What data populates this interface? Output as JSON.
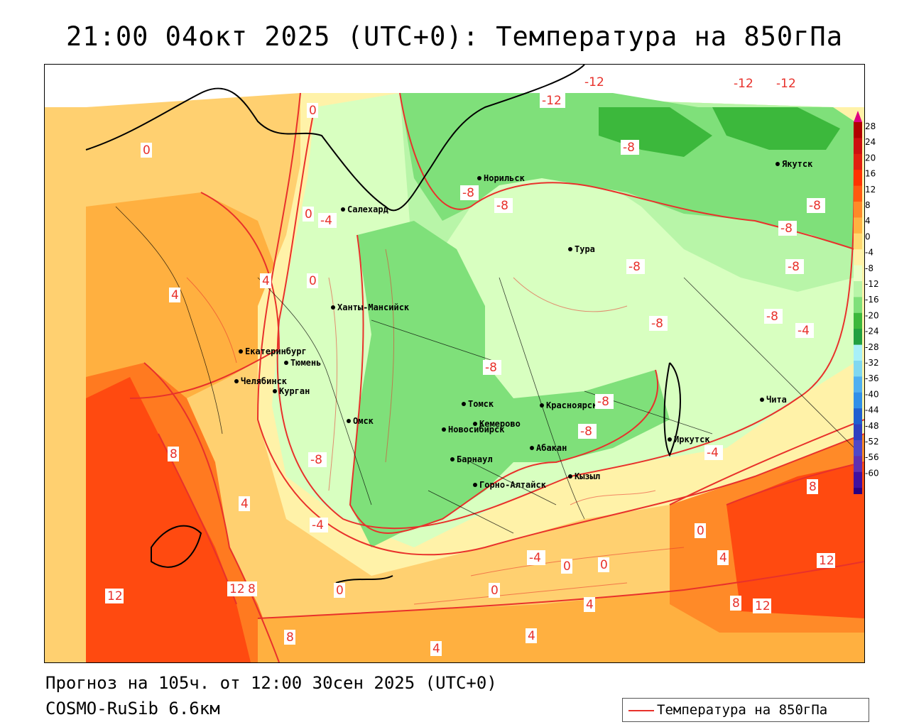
{
  "title": "21:00 04окт 2025 (UTC+0): Температура на 850гПа",
  "footer": {
    "forecast": "Прогноз на 105ч. от 12:00 30сен 2025 (UTC+0)",
    "model": "COSMO-RuSib 6.6км"
  },
  "legend": {
    "label": "Температура на 850гПа",
    "color": "#e8312b"
  },
  "colorbar": {
    "ticks": [
      "28",
      "24",
      "20",
      "16",
      "12",
      "8",
      "4",
      "0",
      "-4",
      "-8",
      "-12",
      "-16",
      "-20",
      "-24",
      "-28",
      "-32",
      "-36",
      "-40",
      "-44",
      "-48",
      "-52",
      "-56",
      "-60"
    ],
    "colors": [
      "#b00000",
      "#cc1010",
      "#e02010",
      "#ff3300",
      "#ff5a10",
      "#ff8a28",
      "#ffb240",
      "#ffd870",
      "#fff2a8",
      "#e8ffc8",
      "#b8f5a8",
      "#7fe07a",
      "#3cb83c",
      "#20a040",
      "#a8f0f8",
      "#80d8f0",
      "#50b0f0",
      "#3090e8",
      "#2060d0",
      "#3040c0",
      "#5048c8",
      "#6030b0",
      "#4010a0",
      "#2a0080"
    ],
    "top_color": "#e00080",
    "bottom_color": "#8000c0"
  },
  "cities": [
    {
      "name": "Норильск"
    },
    {
      "name": "Якутск"
    },
    {
      "name": "Салехард"
    },
    {
      "name": "Тура"
    },
    {
      "name": "Ханты-Мансийск"
    },
    {
      "name": "Екатеринбург"
    },
    {
      "name": "Тюмень"
    },
    {
      "name": "Челябинск"
    },
    {
      "name": "Курган"
    },
    {
      "name": "Омск"
    },
    {
      "name": "Новосибирск"
    },
    {
      "name": "Томск"
    },
    {
      "name": "Кемерово"
    },
    {
      "name": "Барнаул"
    },
    {
      "name": "Красноярск"
    },
    {
      "name": "Абакан"
    },
    {
      "name": "Кызыл"
    },
    {
      "name": "Горно-Алтайск"
    },
    {
      "name": "Иркутск"
    },
    {
      "name": "Чита"
    }
  ],
  "contour_labels": [
    "-12",
    "-12",
    "-12",
    "-12",
    "-8",
    "-8",
    "-8",
    "-8",
    "-8",
    "-8",
    "-8",
    "-8",
    "-8",
    "-8",
    "-8",
    "-8",
    "-8",
    "-4",
    "-4",
    "-4",
    "-4",
    "-4",
    "0",
    "0",
    "0",
    "0",
    "0",
    "0",
    "0",
    "0",
    "0",
    "4",
    "4",
    "4",
    "4",
    "4",
    "4",
    "4",
    "8",
    "8",
    "8",
    "8",
    "8",
    "12",
    "12",
    "12",
    "12"
  ]
}
